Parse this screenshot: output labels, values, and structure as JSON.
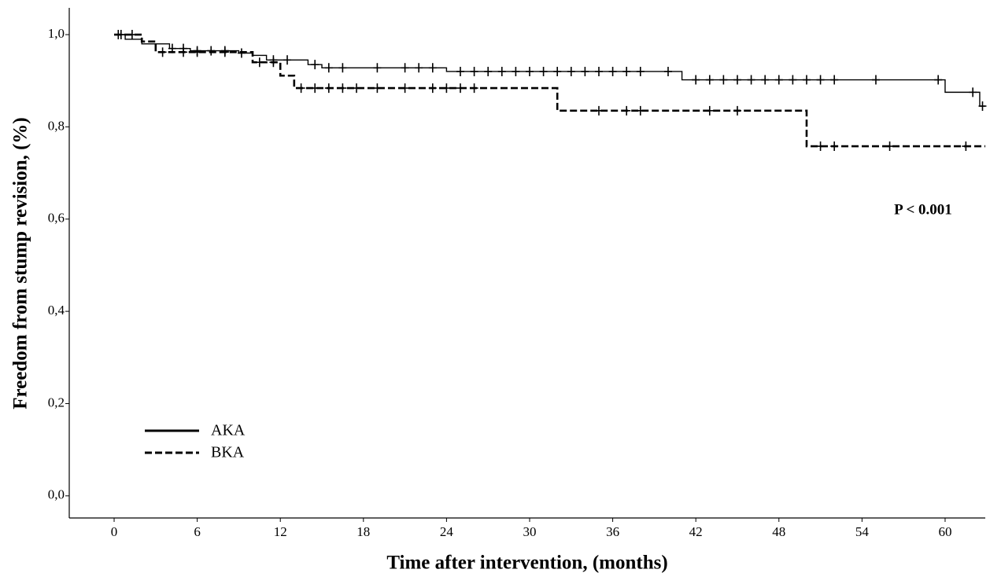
{
  "chart_data": {
    "type": "step",
    "x_label": "Time after intervention, (months)",
    "y_label": "Freedom from stump revision, (%)",
    "annotation": "P < 0.001",
    "xlim": [
      -3.24,
      62.9
    ],
    "xticks": [
      0,
      6,
      12,
      18,
      24,
      30,
      36,
      42,
      48,
      54,
      60
    ],
    "ylim": [
      -0.048,
      1.058
    ],
    "yticks": [
      {
        "value": 0,
        "label": "0,0"
      },
      {
        "value": 0.2,
        "label": "0,2"
      },
      {
        "value": 0.4,
        "label": "0,4"
      },
      {
        "value": 0.6,
        "label": "0,6"
      },
      {
        "value": 0.8,
        "label": "0,8"
      },
      {
        "value": 1,
        "label": "1,0"
      }
    ],
    "legend": "lower left",
    "series": [
      {
        "name": "AKA",
        "color": "#000000",
        "dash": false,
        "x": [
          0,
          0.8,
          2,
          4,
          5.5,
          9,
          10,
          11,
          14,
          15,
          24,
          41,
          60,
          62.5,
          62.9
        ],
        "values": [
          1.0,
          0.99,
          0.98,
          0.97,
          0.965,
          0.96,
          0.955,
          0.945,
          0.935,
          0.928,
          0.92,
          0.902,
          0.875,
          0.845,
          0.845
        ],
        "censored_x": [
          0.3,
          4.2,
          5,
          6,
          7,
          8,
          9.2,
          11.5,
          12.5,
          14.5,
          15.5,
          16.5,
          19,
          21,
          22,
          23,
          25,
          26,
          27,
          28,
          29,
          30,
          31,
          32,
          33,
          34,
          35,
          36,
          37,
          38,
          40,
          42,
          43,
          44,
          45,
          46,
          47,
          48,
          49,
          50,
          51,
          52,
          55,
          59.5,
          62,
          62.7
        ],
        "censored_values": [
          1.0,
          0.97,
          0.97,
          0.965,
          0.965,
          0.965,
          0.96,
          0.945,
          0.945,
          0.935,
          0.928,
          0.928,
          0.928,
          0.928,
          0.928,
          0.928,
          0.92,
          0.92,
          0.92,
          0.92,
          0.92,
          0.92,
          0.92,
          0.92,
          0.92,
          0.92,
          0.92,
          0.92,
          0.92,
          0.92,
          0.92,
          0.902,
          0.902,
          0.902,
          0.902,
          0.902,
          0.902,
          0.902,
          0.902,
          0.902,
          0.902,
          0.902,
          0.902,
          0.902,
          0.875,
          0.845
        ]
      },
      {
        "name": "BKA",
        "color": "#000000",
        "dash": true,
        "x": [
          0,
          2,
          3,
          10,
          12,
          13,
          32,
          50,
          62.9
        ],
        "values": [
          1.0,
          0.985,
          0.962,
          0.94,
          0.911,
          0.884,
          0.835,
          0.758,
          0.758
        ],
        "censored_x": [
          0.5,
          1.3,
          3.5,
          5,
          6,
          8,
          10.5,
          11.5,
          13.5,
          14.5,
          15.5,
          16.5,
          17.5,
          19,
          21,
          23,
          24,
          25,
          26,
          35,
          37,
          38,
          43,
          45,
          51,
          52,
          56,
          61.5
        ],
        "censored_values": [
          1.0,
          1.0,
          0.962,
          0.962,
          0.962,
          0.962,
          0.94,
          0.94,
          0.884,
          0.884,
          0.884,
          0.884,
          0.884,
          0.884,
          0.884,
          0.884,
          0.884,
          0.884,
          0.884,
          0.835,
          0.835,
          0.835,
          0.835,
          0.835,
          0.758,
          0.758,
          0.758,
          0.758
        ]
      }
    ]
  }
}
